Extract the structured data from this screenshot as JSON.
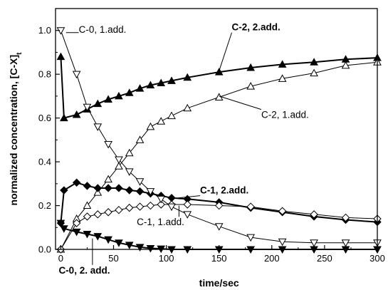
{
  "chart_data": {
    "type": "line",
    "xlabel": "time/sec",
    "ylabel": "normalized concentration, [C-X]",
    "ylabel_sub": "t",
    "xlim": [
      -5,
      300
    ],
    "ylim": [
      0,
      1.1
    ],
    "xticks": [
      0,
      50,
      100,
      150,
      200,
      250,
      300
    ],
    "yticks": [
      0.0,
      0.2,
      0.4,
      0.6,
      0.8,
      1.0
    ],
    "xtick_labels": [
      "0",
      "50",
      "100",
      "150",
      "200",
      "250",
      "300"
    ],
    "ytick_labels": [
      "0.0",
      "0.2",
      "0.4",
      "0.6",
      "0.8",
      "1.0"
    ],
    "grid": false,
    "series": [
      {
        "name": "C-2, 2.add.",
        "marker": "triangle-up",
        "filled": true,
        "x": [
          0,
          3,
          15,
          25,
          35,
          45,
          55,
          65,
          75,
          85,
          95,
          105,
          120,
          150,
          180,
          210,
          240,
          270,
          300
        ],
        "y": [
          0.88,
          0.6,
          0.615,
          0.64,
          0.665,
          0.685,
          0.7,
          0.715,
          0.735,
          0.75,
          0.76,
          0.77,
          0.785,
          0.81,
          0.83,
          0.845,
          0.855,
          0.868,
          0.875
        ]
      },
      {
        "name": "C-2, 1.add.",
        "marker": "triangle-up",
        "filled": false,
        "x": [
          0,
          15,
          25,
          35,
          45,
          55,
          65,
          75,
          85,
          95,
          105,
          120,
          150,
          180,
          210,
          240,
          270,
          300
        ],
        "y": [
          0.0,
          0.14,
          0.2,
          0.26,
          0.32,
          0.38,
          0.44,
          0.5,
          0.56,
          0.585,
          0.61,
          0.645,
          0.695,
          0.745,
          0.78,
          0.805,
          0.84,
          0.855
        ]
      },
      {
        "name": "C-1, 2.add.",
        "marker": "diamond",
        "filled": true,
        "x": [
          0,
          3,
          15,
          25,
          35,
          45,
          55,
          65,
          75,
          85,
          95,
          105,
          120,
          150,
          180,
          210,
          240,
          270,
          300
        ],
        "y": [
          0.12,
          0.27,
          0.305,
          0.29,
          0.28,
          0.28,
          0.28,
          0.27,
          0.265,
          0.255,
          0.245,
          0.235,
          0.23,
          0.215,
          0.19,
          0.17,
          0.15,
          0.135,
          0.125
        ]
      },
      {
        "name": "C-1, 1.add.",
        "marker": "diamond",
        "filled": false,
        "x": [
          0,
          15,
          25,
          35,
          45,
          55,
          65,
          75,
          85,
          95,
          105,
          120,
          150,
          180,
          210,
          240,
          270,
          300
        ],
        "y": [
          0.0,
          0.12,
          0.15,
          0.16,
          0.17,
          0.18,
          0.19,
          0.195,
          0.2,
          0.205,
          0.205,
          0.205,
          0.2,
          0.195,
          0.175,
          0.16,
          0.145,
          0.14
        ]
      },
      {
        "name": "C-0, 1.add.",
        "marker": "triangle-down",
        "filled": false,
        "x": [
          0,
          15,
          25,
          35,
          45,
          55,
          65,
          75,
          85,
          95,
          105,
          120,
          150,
          180,
          210,
          240,
          270,
          300
        ],
        "y": [
          1.0,
          0.8,
          0.65,
          0.56,
          0.48,
          0.41,
          0.355,
          0.31,
          0.265,
          0.23,
          0.195,
          0.16,
          0.105,
          0.055,
          0.035,
          0.03,
          0.03,
          0.03
        ]
      },
      {
        "name": "C-0, 2. add.",
        "marker": "triangle-down",
        "filled": true,
        "x": [
          0,
          3,
          15,
          25,
          35,
          45,
          55,
          65,
          75,
          85,
          95,
          105,
          120,
          150,
          180,
          210,
          240,
          270,
          300
        ],
        "y": [
          0.12,
          0.095,
          0.08,
          0.07,
          0.06,
          0.045,
          0.03,
          0.02,
          0.01,
          0.005,
          0.003,
          0.0,
          0.0,
          0.0,
          0.0,
          0.0,
          0.0,
          0.0,
          0.0
        ]
      }
    ],
    "annotations": [
      {
        "text": "C-0, 1.add.",
        "bold": false,
        "x": 17,
        "y": 0.99,
        "target_x": 5,
        "target_y": 0.99
      },
      {
        "text": "C-2, 2.add.",
        "bold": true,
        "x": 162,
        "y": 1.0,
        "target_x": 150,
        "target_y": 0.815
      },
      {
        "text": "C-2, 1.add.",
        "bold": false,
        "x": 190,
        "y": 0.6,
        "target_x": 150,
        "target_y": 0.7
      },
      {
        "text": "C-1, 2.add.",
        "bold": true,
        "x": 132,
        "y": 0.255,
        "target_x": 105,
        "target_y": 0.232
      },
      {
        "text": "C-1, 1.add.",
        "bold": false,
        "x": 72,
        "y": 0.11,
        "target_x": 112,
        "target_y": 0.2
      },
      {
        "text": "C-0, 2. add.",
        "bold": true,
        "x": -2,
        "y": -0.11,
        "target_x": 30,
        "target_y": 0.05
      }
    ]
  }
}
